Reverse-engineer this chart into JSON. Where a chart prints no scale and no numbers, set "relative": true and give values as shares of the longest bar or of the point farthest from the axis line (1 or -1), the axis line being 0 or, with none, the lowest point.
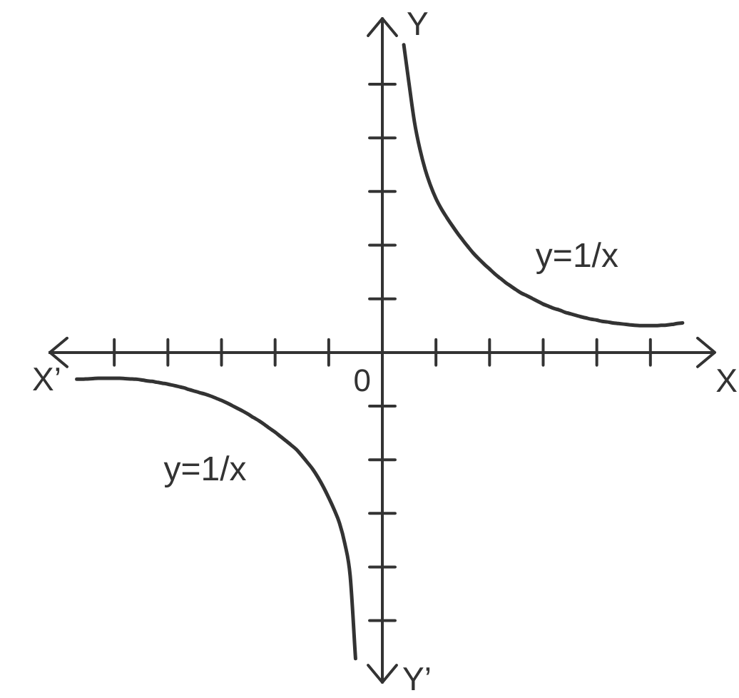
{
  "chart_data": {
    "type": "line",
    "relative": true,
    "marker": "none",
    "line_style": "solid",
    "xlabel": "X",
    "ylabel": "Y",
    "annotations": [
      "X’",
      "0",
      "Y’"
    ],
    "categories": [
      null,
      null,
      null,
      null,
      null,
      null,
      null,
      null,
      null,
      null,
      null,
      null,
      null,
      null,
      null,
      null,
      null,
      null,
      null,
      null,
      null,
      null,
      null,
      null,
      null,
      null,
      null,
      null,
      null,
      null,
      null,
      null,
      null,
      null,
      null,
      null,
      null,
      null,
      null,
      null,
      null,
      null,
      null,
      null,
      null,
      null,
      null,
      null,
      null,
      null,
      null,
      null,
      null,
      null,
      null,
      null,
      null,
      null,
      null,
      null,
      null,
      null,
      null,
      null,
      null,
      null,
      null,
      null,
      null,
      null,
      null,
      null,
      null,
      null,
      null,
      null,
      null,
      null,
      null,
      null,
      null,
      null,
      null,
      null,
      null,
      null,
      null,
      null,
      null,
      null,
      null,
      null,
      null,
      null,
      null,
      null,
      null,
      null,
      null,
      null,
      null,
      null,
      null,
      null,
      null,
      null,
      null,
      null,
      null,
      null,
      null,
      null,
      null,
      null,
      null,
      null,
      null,
      null,
      null,
      null,
      null,
      null,
      null,
      null,
      null
    ],
    "series": [
      {
        "name": "y=1/x",
        "color": "#333333",
        "values": [
          null,
          null,
          null,
          null,
          null,
          null,
          null,
          null,
          null,
          null,
          null,
          null,
          null,
          null,
          null,
          null,
          null,
          null,
          null,
          null,
          null,
          null,
          null,
          null,
          null,
          null,
          null,
          null,
          null,
          null,
          null,
          null,
          null,
          null,
          null,
          null,
          null,
          null,
          null,
          null,
          null,
          null,
          null,
          null,
          null,
          null,
          null,
          null,
          null,
          null,
          null,
          null,
          null,
          null,
          null,
          null,
          null,
          null,
          null,
          null,
          null,
          null,
          null,
          null,
          null,
          null,
          1,
          0.871,
          0.748,
          0.661,
          0.594,
          0.542,
          0.5,
          0.467,
          0.439,
          0.413,
          0.388,
          0.365,
          0.343,
          0.322,
          0.304,
          0.287,
          0.271,
          0.255,
          0.241,
          0.227,
          0.215,
          0.203,
          0.192,
          0.184,
          0.175,
          0.166,
          0.157,
          0.15,
          0.143,
          0.138,
          0.131,
          0.126,
          0.121,
          0.116,
          0.112,
          0.108,
          0.105,
          0.101,
          0.099,
          0.096,
          0.094,
          0.092,
          0.09,
          0.088,
          0.087,
          0.087,
          0.087,
          0.087,
          0.088,
          0.089,
          0.091,
          0.094,
          0.096,
          null,
          null,
          null,
          null,
          null,
          null
        ]
      },
      {
        "name": "y=1/x",
        "color": "#333333",
        "values": [
          null,
          null,
          null,
          null,
          null,
          -0.087,
          -0.087,
          -0.086,
          -0.085,
          -0.084,
          -0.084,
          -0.084,
          -0.084,
          -0.084,
          -0.085,
          -0.086,
          -0.087,
          -0.089,
          -0.092,
          -0.094,
          -0.097,
          -0.1,
          -0.103,
          -0.107,
          -0.111,
          -0.115,
          -0.121,
          -0.126,
          -0.131,
          -0.136,
          -0.142,
          -0.149,
          -0.156,
          -0.164,
          -0.173,
          -0.182,
          -0.191,
          -0.201,
          -0.212,
          -0.222,
          -0.234,
          -0.247,
          -0.259,
          -0.273,
          -0.287,
          -0.301,
          -0.316,
          -0.336,
          -0.357,
          -0.379,
          -0.406,
          -0.437,
          -0.472,
          -0.51,
          -0.554,
          -0.621,
          -0.726,
          -0.995,
          null,
          null,
          null,
          null,
          null,
          null,
          null,
          null,
          null,
          null,
          null,
          null,
          null,
          null,
          null,
          null,
          null,
          null,
          null,
          null,
          null,
          null,
          null,
          null,
          null,
          null,
          null,
          null,
          null,
          null,
          null,
          null,
          null,
          null,
          null,
          null,
          null,
          null,
          null,
          null,
          null,
          null,
          null,
          null,
          null,
          null,
          null,
          null,
          null,
          null,
          null,
          null,
          null,
          null,
          null,
          null,
          null,
          null,
          null,
          null,
          null,
          null,
          null,
          null,
          null,
          null,
          null
        ]
      }
    ]
  }
}
